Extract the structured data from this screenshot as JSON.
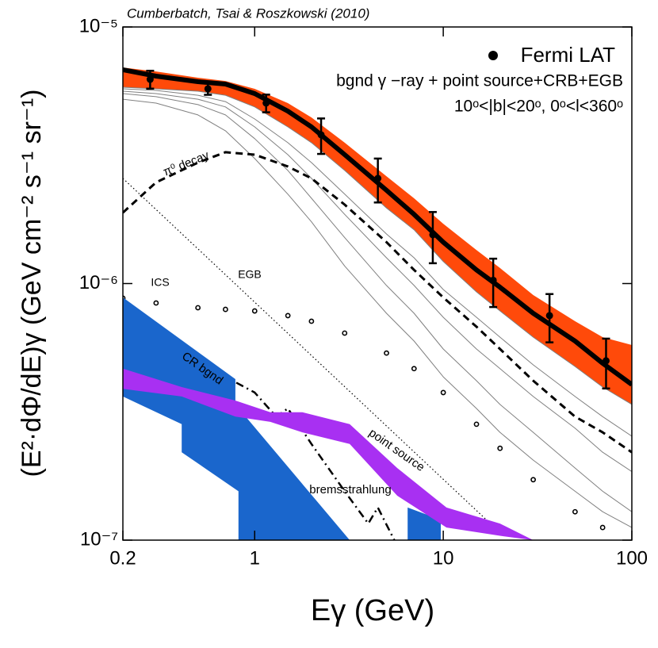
{
  "chart_data": {
    "type": "line",
    "title": "Cumberbatch, Tsai & Roszkowski (2010)",
    "xlabel": "Eγ (GeV)",
    "ylabel": "(E²·dΦ/dE)γ (GeV cm⁻² s⁻¹ sr⁻¹)",
    "legend_notes": [
      "bgnd γ −ray + point source+CRB+EGB",
      "10ᵒ<|b|<20ᵒ, 0ᵒ<l<360ᵒ"
    ],
    "legend": "upper right",
    "xscale": "log",
    "yscale": "log",
    "xlim": [
      0.2,
      100
    ],
    "ylim": [
      1e-07,
      1e-05
    ],
    "xticks": [
      0.2,
      1,
      10,
      100
    ],
    "yticks": [
      {
        "value": 1e-07,
        "label": "10⁻⁷"
      },
      {
        "value": 1e-06,
        "label": "10⁻⁶"
      },
      {
        "value": 1e-05,
        "label": "10⁻⁵"
      }
    ],
    "series": [
      {
        "style": "band",
        "color": "#ff4a0a",
        "x": [
          0.2,
          0.3,
          0.5,
          0.7,
          1,
          1.5,
          2,
          3,
          5,
          7,
          10,
          15,
          20,
          30,
          50,
          70,
          100
        ],
        "upper": [
          6.95e-06,
          6.71e-06,
          6.34e-06,
          6.16e-06,
          5.74e-06,
          5.05e-06,
          4.44e-06,
          3.54e-06,
          2.62e-06,
          2.15e-06,
          1.71e-06,
          1.35e-06,
          1.15e-06,
          9.02e-07,
          7.13e-07,
          6.18e-07,
          5.76e-07
        ],
        "lower": [
          5.82e-06,
          5.74e-06,
          5.62e-06,
          5.42e-06,
          4.88e-06,
          4.08e-06,
          3.54e-06,
          2.76e-06,
          1.97e-06,
          1.62e-06,
          1.22e-06,
          9.28e-07,
          7.82e-07,
          6.18e-07,
          4.75e-07,
          3.95e-07,
          3.38e-07
        ]
      },
      {
        "style": "thin",
        "color": "#808080",
        "x": [
          0.2,
          0.3,
          0.5,
          0.7,
          1,
          1.5,
          2,
          3,
          5,
          7,
          10,
          15,
          20,
          30,
          50,
          70,
          100
        ],
        "values": [
          5.82e-06,
          5.74e-06,
          5.62e-06,
          5.42e-06,
          4.88e-06,
          4.08e-06,
          3.54e-06,
          2.76e-06,
          1.97e-06,
          1.62e-06,
          1.22e-06,
          9.28e-07,
          7.82e-07,
          6.18e-07,
          4.75e-07,
          3.95e-07,
          3.38e-07
        ]
      },
      {
        "style": "thin",
        "color": "#808080",
        "x": [
          0.2,
          0.3,
          0.5,
          0.7,
          1,
          1.5,
          2,
          3,
          5,
          7,
          10,
          15,
          20,
          30,
          50,
          70,
          100
        ],
        "values": [
          5.74e-06,
          5.66e-06,
          5.42e-06,
          5.12e-06,
          4.38e-06,
          3.54e-06,
          2.96e-06,
          2.23e-06,
          1.56e-06,
          1.26e-06,
          9.48e-07,
          7.39e-07,
          6.18e-07,
          4.82e-07,
          3.63e-07,
          3.03e-07,
          2.54e-07
        ]
      },
      {
        "style": "thin",
        "color": "#808080",
        "x": [
          0.2,
          0.3,
          0.5,
          0.7,
          1,
          1.5,
          2,
          3,
          5,
          7,
          10,
          15,
          20,
          30,
          50,
          70,
          100
        ],
        "values": [
          5.62e-06,
          5.5e-06,
          5.23e-06,
          4.88e-06,
          4.08e-06,
          3.18e-06,
          2.57e-06,
          1.86e-06,
          1.26e-06,
          9.83e-07,
          7.39e-07,
          5.56e-07,
          4.66e-07,
          3.63e-07,
          2.73e-07,
          2.2e-07,
          1.85e-07
        ]
      },
      {
        "style": "thin",
        "color": "#808080",
        "x": [
          0.2,
          0.3,
          0.5,
          0.7,
          1,
          1.5,
          2,
          3,
          5,
          7,
          10,
          15,
          20,
          30,
          50,
          70,
          100
        ],
        "values": [
          5.5e-06,
          5.35e-06,
          4.98e-06,
          4.54e-06,
          3.67e-06,
          2.76e-06,
          2.15e-06,
          1.51e-06,
          9.83e-07,
          7.66e-07,
          5.56e-07,
          4.18e-07,
          3.38e-07,
          2.63e-07,
          1.91e-07,
          1.55e-07,
          1.29e-07
        ]
      },
      {
        "style": "thin",
        "color": "#808080",
        "x": [
          0.2,
          0.3,
          0.5,
          0.7,
          1,
          1.5,
          2,
          3,
          5,
          7,
          10,
          15,
          20,
          30,
          50,
          70,
          100
        ],
        "values": [
          5.23e-06,
          5.05e-06,
          4.54e-06,
          3.94e-06,
          3.07e-06,
          2.23e-06,
          1.74e-06,
          1.17e-06,
          7.66e-07,
          5.97e-07,
          4.33e-07,
          3.26e-07,
          2.63e-07,
          2.05e-07,
          1.55e-07,
          1.29e-07,
          1.12e-07
        ]
      },
      {
        "style": "thick",
        "color": "#000000",
        "x": [
          0.2,
          0.3,
          0.5,
          0.7,
          1,
          1.5,
          2,
          3,
          5,
          7,
          10,
          15,
          20,
          30,
          50,
          70,
          100
        ],
        "values": [
          6.81e-06,
          6.43e-06,
          6.12e-06,
          5.99e-06,
          5.5e-06,
          4.7e-06,
          4.08e-06,
          3.18e-06,
          2.31e-06,
          1.86e-06,
          1.45e-06,
          1.13e-06,
          9.68e-07,
          7.66e-07,
          5.97e-07,
          4.89e-07,
          4.04e-07
        ]
      },
      {
        "name": "π⁰ decay",
        "style": "dashed",
        "color": "#000000",
        "x": [
          0.2,
          0.3,
          0.5,
          0.7,
          1,
          1.5,
          2,
          3,
          5,
          7,
          10,
          15,
          20,
          30,
          50,
          70,
          100
        ],
        "values": [
          1.89e-06,
          2.48e-06,
          2.96e-06,
          3.25e-06,
          3.18e-06,
          2.86e-06,
          2.57e-06,
          2.03e-06,
          1.45e-06,
          1.13e-06,
          8.83e-07,
          6.79e-07,
          5.56e-07,
          4.18e-07,
          3.03e-07,
          2.63e-07,
          2.2e-07
        ]
      },
      {
        "name": "EGB",
        "style": "dotted",
        "color": "#000000",
        "x": [
          0.2,
          20
        ],
        "values": [
          2.57e-06,
          1.07e-07
        ]
      },
      {
        "name": "ICS",
        "style": "circles",
        "color": "#000000",
        "x": [
          0.2,
          0.3,
          0.5,
          0.7,
          1,
          1.5,
          2,
          3,
          5,
          7,
          10,
          15,
          20,
          30,
          50,
          70
        ],
        "values": [
          8.77e-07,
          8.4e-07,
          8.05e-07,
          7.93e-07,
          7.82e-07,
          7.5e-07,
          7.13e-07,
          6.41e-07,
          5.36e-07,
          4.66e-07,
          3.76e-07,
          2.83e-07,
          2.28e-07,
          1.72e-07,
          1.29e-07,
          1.12e-07
        ]
      },
      {
        "name": "bremsstrahlung",
        "style": "dashdot",
        "color": "#000000",
        "x": [
          0.2,
          0.25,
          0.3,
          0.5,
          0.7,
          1,
          1.3,
          1.5,
          2,
          3,
          4,
          4.5,
          5.5
        ],
        "values": [
          5.36e-07,
          5.68e-07,
          5.56e-07,
          5e-07,
          4.33e-07,
          3.76e-07,
          3.03e-07,
          3.26e-07,
          2.37e-07,
          1.55e-07,
          1.16e-07,
          1.34e-07,
          1e-07
        ]
      },
      {
        "name": "CR bgnd",
        "style": "pieces",
        "color": "#1a66cc",
        "pieces": [
          {
            "x_upper": [
              0.2,
              0.79,
              0.79,
              3.19
            ],
            "upper": [
              8.83e-07,
              4.24e-07,
              3.38e-07,
              1e-07
            ],
            "x_lower": [
              0.2,
              0.41,
              0.41,
              0.82,
              0.82
            ],
            "lower": [
              3.63e-07,
              2.83e-07,
              2.2e-07,
              1.55e-07,
              1e-07
            ]
          },
          {
            "x_upper": [
              6.47,
              9.7
            ],
            "upper": [
              1.34e-07,
              1.2e-07
            ],
            "x_lower": [
              6.47,
              9.7
            ],
            "lower": [
              1e-07,
              1e-07
            ]
          }
        ]
      },
      {
        "name": "point source",
        "style": "band",
        "color": "#a830f2",
        "x": [
          0.2,
          0.41,
          0.79,
          1.21,
          1.79,
          3.19,
          5.7,
          10.4,
          20,
          30
        ],
        "upper": [
          4.66e-07,
          3.95e-07,
          3.5e-07,
          3.15e-07,
          3.15e-07,
          2.83e-07,
          1.91e-07,
          1.34e-07,
          1.16e-07,
          1e-07
        ],
        "lower": [
          3.89e-07,
          3.63e-07,
          3.03e-07,
          2.89e-07,
          2.63e-07,
          2.37e-07,
          1.49e-07,
          1.12e-07,
          1.04e-07,
          1e-07
        ]
      },
      {
        "name": "Fermi LAT",
        "style": "errorbar",
        "color": "#000000",
        "x": [
          0.279,
          0.565,
          1.15,
          2.25,
          4.5,
          8.8,
          18.4,
          36.6,
          73
        ],
        "values": [
          6.25e-06,
          5.74e-06,
          5.05e-06,
          3.8e-06,
          2.57e-06,
          1.55e-06,
          1.03e-06,
          7.5e-07,
          5e-07
        ],
        "errors": [
          5e-07,
          3e-07,
          4e-07,
          6e-07,
          5e-07,
          3.5e-07,
          2.2e-07,
          1.6e-07,
          1.1e-07
        ]
      }
    ]
  }
}
